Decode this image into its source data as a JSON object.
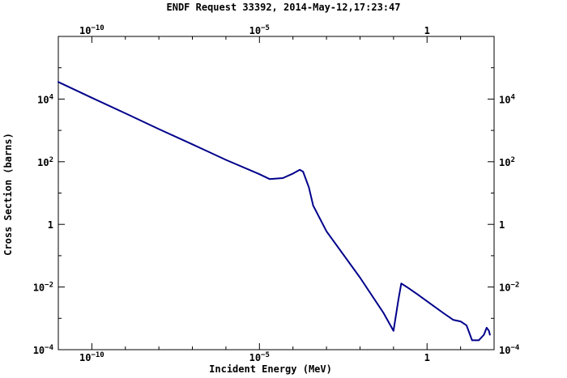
{
  "chart_data": {
    "type": "line",
    "title": "ENDF Request 33392, 2014-May-12,17:23:47",
    "xlabel": "Incident Energy (MeV)",
    "ylabel": "Cross Section (barns)",
    "xscale": "log",
    "yscale": "log",
    "xlim": [
      1e-11,
      100.0
    ],
    "ylim": [
      0.0001,
      1000000.0
    ],
    "grid": false,
    "xticks_major": [
      {
        "value": 1e-10,
        "label_base": "10",
        "label_exp": "−10"
      },
      {
        "value": 1e-05,
        "label_base": "10",
        "label_exp": "−5"
      },
      {
        "value": 1,
        "label_base": "1",
        "label_exp": ""
      }
    ],
    "yticks_major": [
      {
        "value": 0.0001,
        "label_base": "10",
        "label_exp": "−4"
      },
      {
        "value": 0.01,
        "label_base": "10",
        "label_exp": "−2"
      },
      {
        "value": 1,
        "label_base": "1",
        "label_exp": ""
      },
      {
        "value": 100.0,
        "label_base": "10",
        "label_exp": "2"
      },
      {
        "value": 10000.0,
        "label_base": "10",
        "label_exp": "4"
      }
    ],
    "series": [
      {
        "color": "#00008b",
        "points": [
          [
            1e-11,
            35000
          ],
          [
            1e-10,
            11000
          ],
          [
            1e-09,
            3500
          ],
          [
            1e-08,
            1100
          ],
          [
            1e-07,
            360
          ],
          [
            1e-06,
            115
          ],
          [
            1e-05,
            40
          ],
          [
            2e-05,
            28
          ],
          [
            5e-05,
            30
          ],
          [
            0.0001,
            42
          ],
          [
            0.00016,
            55
          ],
          [
            0.0002,
            48
          ],
          [
            0.0003,
            15
          ],
          [
            0.0004,
            4
          ],
          [
            0.001,
            0.6
          ],
          [
            0.01,
            0.02
          ],
          [
            0.05,
            0.0015
          ],
          [
            0.1,
            0.0004
          ],
          [
            0.14,
            0.004
          ],
          [
            0.17,
            0.013
          ],
          [
            0.25,
            0.01
          ],
          [
            0.5,
            0.006
          ],
          [
            1,
            0.0035
          ],
          [
            3,
            0.0015
          ],
          [
            6,
            0.0009
          ],
          [
            10,
            0.0008
          ],
          [
            15,
            0.0006
          ],
          [
            22,
            0.0002
          ],
          [
            35,
            0.0002
          ],
          [
            50,
            0.0003
          ],
          [
            60,
            0.0005
          ],
          [
            70,
            0.0004
          ],
          [
            75,
            0.0003
          ]
        ]
      }
    ]
  }
}
